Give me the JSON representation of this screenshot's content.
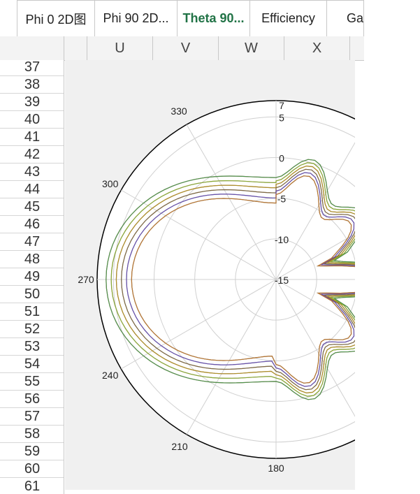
{
  "tabs": [
    {
      "label": "Phi 0 2D图",
      "active": false
    },
    {
      "label": "Phi 90 2D...",
      "active": false
    },
    {
      "label": "Theta 90...",
      "active": true
    },
    {
      "label": "Efficiency",
      "active": false
    },
    {
      "label": "Ga",
      "active": false
    }
  ],
  "columns": [
    "U",
    "V",
    "W",
    "X"
  ],
  "rows": [
    "37",
    "38",
    "39",
    "40",
    "41",
    "42",
    "43",
    "44",
    "45",
    "46",
    "47",
    "48",
    "49",
    "50",
    "51",
    "52",
    "53",
    "54",
    "55",
    "56",
    "57",
    "58",
    "59",
    "60",
    "61"
  ],
  "colors": {
    "active_tab": "#217346",
    "plot_bg": "#f0f0f0",
    "grid": "#d0d0d0"
  },
  "chart_data": {
    "type": "polar",
    "angle_labels": [
      "330",
      "300",
      "270",
      "240",
      "210",
      "180"
    ],
    "radial_labels": [
      "7",
      "5",
      "0",
      "-5",
      "-10",
      "-15"
    ],
    "radial_range": [
      -15,
      7
    ],
    "series_count": 12,
    "series_colors": [
      "#a0303a",
      "#c0506a",
      "#8b2c3b",
      "#4aa0b0",
      "#3a8fc0",
      "#2b7a7a",
      "#3da04a",
      "#7ab82a",
      "#b0a020",
      "#8a5a2a",
      "#7040a0",
      "#d07020"
    ]
  }
}
